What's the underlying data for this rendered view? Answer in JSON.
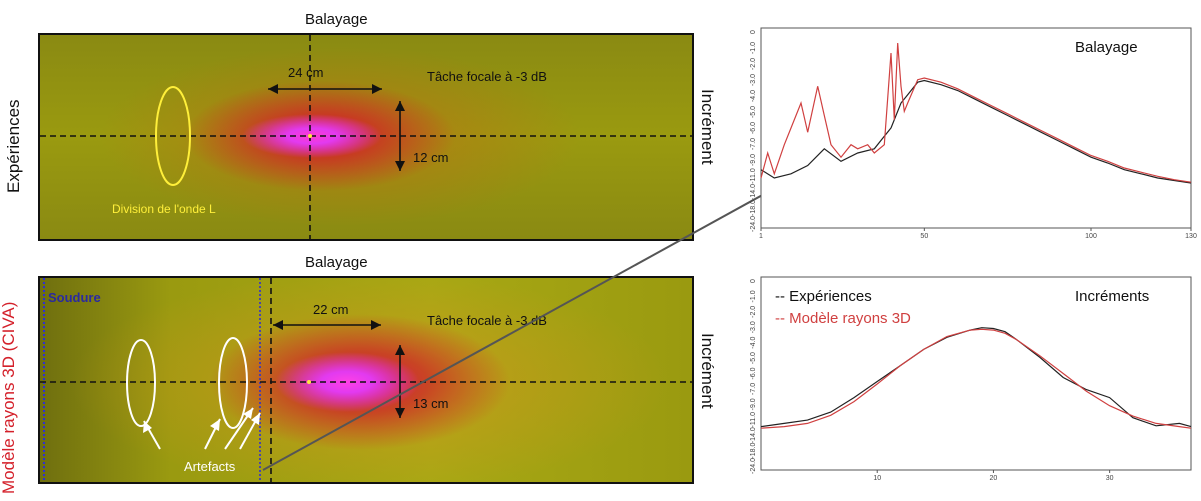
{
  "left": {
    "label_experiences": "Expériences",
    "label_model": "Modèle rayons 3D (CIVA)",
    "colors": {
      "model_red": "#d4202a",
      "yellow_ellipse": "#ffef3a",
      "white_ellipse": "#ffffff",
      "soudure_blue": "#2a2aa0"
    },
    "top_panel": {
      "title": "Balayage",
      "side_label": "Incrément",
      "width_label": "24 cm",
      "height_label": "12 cm",
      "focal_label": "Tâche focale à -3 dB",
      "division_label": "Division de l'onde L"
    },
    "bottom_panel": {
      "title": "Balayage",
      "side_label": "Incrément",
      "soudure_label": "Soudure",
      "width_label": "22 cm",
      "height_label": "13 cm",
      "focal_label": "Tâche focale à -3 dB",
      "artefacts_label": "Artefacts"
    }
  },
  "chart_data": [
    {
      "type": "line",
      "title": "Balayage",
      "x_ticks": [
        "1",
        "50",
        "100",
        "130"
      ],
      "y_ticks": [
        "0",
        "-1.0",
        "-2.0",
        "-3.0",
        "-4.0",
        "-5.0",
        "-6.0",
        "-7.0",
        "-9.0",
        "-11.0",
        "-14.0",
        "-18.0",
        "-24.0"
      ],
      "xlim": [
        1,
        130
      ],
      "ylim": [
        -24,
        0
      ],
      "series": [
        {
          "color": "#222222",
          "x": [
            1,
            5,
            10,
            15,
            20,
            25,
            30,
            35,
            38,
            40,
            43,
            45,
            48,
            50,
            55,
            60,
            65,
            70,
            75,
            80,
            85,
            90,
            95,
            100,
            105,
            110,
            115,
            120,
            125,
            130
          ],
          "y": [
            -17,
            -18,
            -17.5,
            -16.5,
            -14.5,
            -16,
            -15,
            -14.5,
            -13,
            -12,
            -9,
            -8,
            -6.5,
            -6.3,
            -6.8,
            -7.5,
            -8.5,
            -9.5,
            -10.5,
            -11.5,
            -12.5,
            -13.5,
            -14.5,
            -15.5,
            -16.2,
            -17,
            -17.5,
            -18,
            -18.3,
            -18.6
          ]
        },
        {
          "color": "#d04040",
          "x": [
            1,
            3,
            5,
            8,
            10,
            13,
            15,
            18,
            20,
            22,
            25,
            28,
            30,
            33,
            35,
            38,
            40,
            41,
            42,
            43,
            44,
            45,
            48,
            50,
            55,
            60,
            65,
            70,
            75,
            80,
            85,
            90,
            95,
            100,
            105,
            110,
            115,
            120,
            125,
            130
          ],
          "y": [
            -18,
            -15,
            -17.5,
            -14,
            -12,
            -9,
            -12.5,
            -7,
            -10.5,
            -14,
            -15.5,
            -14,
            -14.5,
            -14,
            -15,
            -14,
            -3,
            -11,
            -1.8,
            -7,
            -10,
            -9,
            -6.2,
            -6.0,
            -6.5,
            -7.3,
            -8.3,
            -9.3,
            -10.3,
            -11.3,
            -12.3,
            -13.3,
            -14.3,
            -15.3,
            -16,
            -16.8,
            -17.3,
            -17.8,
            -18.2,
            -18.5
          ]
        }
      ]
    },
    {
      "type": "line",
      "title": "Incréments",
      "x_ticks": [
        "10",
        "20",
        "30"
      ],
      "y_ticks": [
        "0",
        "-1.0",
        "-2.0",
        "-3.0",
        "-4.0",
        "-5.0",
        "-6.0",
        "-7.0",
        "-9.0",
        "-11.0",
        "-14.0",
        "-18.0",
        "-24.0"
      ],
      "xlim": [
        0,
        37
      ],
      "ylim": [
        -24,
        0
      ],
      "series": [
        {
          "name": "-- Expériences",
          "color": "#222222",
          "x": [
            0,
            2,
            4,
            6,
            8,
            10,
            12,
            14,
            16,
            18,
            19,
            20,
            21,
            22,
            24,
            26,
            28,
            30,
            32,
            34,
            36,
            37
          ],
          "y": [
            -18.6,
            -18.2,
            -17.8,
            -16.8,
            -15,
            -13,
            -11,
            -9,
            -7.5,
            -6.6,
            -6.3,
            -6.4,
            -6.8,
            -7.8,
            -10,
            -12.5,
            -14,
            -15,
            -17.5,
            -18.5,
            -18.2,
            -18.6
          ]
        },
        {
          "name": "-- Modèle rayons 3D",
          "color": "#d04040",
          "x": [
            0,
            2,
            4,
            6,
            8,
            10,
            12,
            14,
            16,
            18,
            19,
            20,
            21,
            22,
            24,
            26,
            28,
            30,
            32,
            34,
            36,
            37
          ],
          "y": [
            -18.8,
            -18.6,
            -18.2,
            -17.2,
            -15.5,
            -13.3,
            -11,
            -9,
            -7.4,
            -6.6,
            -6.5,
            -6.6,
            -7,
            -7.8,
            -9.8,
            -12,
            -14.2,
            -16,
            -17.3,
            -18.2,
            -18.6,
            -18.8
          ]
        }
      ]
    }
  ]
}
